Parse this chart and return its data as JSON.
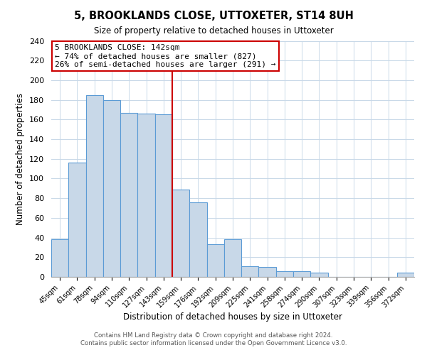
{
  "title": "5, BROOKLANDS CLOSE, UTTOXETER, ST14 8UH",
  "subtitle": "Size of property relative to detached houses in Uttoxeter",
  "xlabel": "Distribution of detached houses by size in Uttoxeter",
  "ylabel": "Number of detached properties",
  "bar_labels": [
    "45sqm",
    "61sqm",
    "78sqm",
    "94sqm",
    "110sqm",
    "127sqm",
    "143sqm",
    "159sqm",
    "176sqm",
    "192sqm",
    "209sqm",
    "225sqm",
    "241sqm",
    "258sqm",
    "274sqm",
    "290sqm",
    "307sqm",
    "323sqm",
    "339sqm",
    "356sqm",
    "372sqm"
  ],
  "bar_values": [
    38,
    116,
    185,
    180,
    167,
    166,
    165,
    89,
    76,
    33,
    38,
    11,
    10,
    6,
    6,
    4,
    0,
    0,
    0,
    0,
    4
  ],
  "bar_color": "#c8d8e8",
  "bar_edge_color": "#5b9bd5",
  "vline_color": "#cc0000",
  "annotation_title": "5 BROOKLANDS CLOSE: 142sqm",
  "annotation_line1": "← 74% of detached houses are smaller (827)",
  "annotation_line2": "26% of semi-detached houses are larger (291) →",
  "annotation_box_color": "#ffffff",
  "annotation_box_edge": "#cc0000",
  "ylim": [
    0,
    240
  ],
  "yticks": [
    0,
    20,
    40,
    60,
    80,
    100,
    120,
    140,
    160,
    180,
    200,
    220,
    240
  ],
  "footer1": "Contains HM Land Registry data © Crown copyright and database right 2024.",
  "footer2": "Contains public sector information licensed under the Open Government Licence v3.0.",
  "background_color": "#ffffff",
  "grid_color": "#c8d8e8"
}
